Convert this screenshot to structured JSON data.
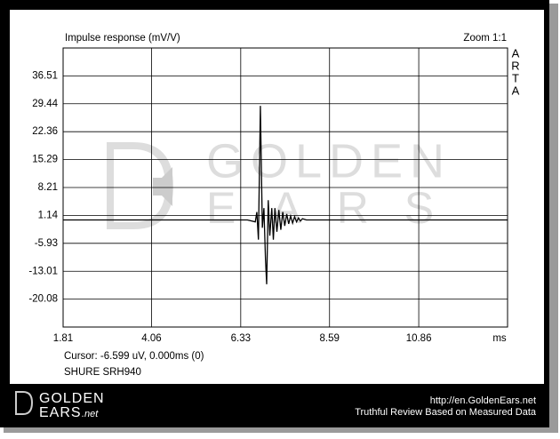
{
  "chart_data": {
    "type": "line",
    "title": "Impulse response (mV/V)",
    "zoom": "Zoom 1:1",
    "side_label": [
      "A",
      "R",
      "T",
      "A"
    ],
    "x_label": "ms",
    "cursor": "Cursor: -6.599 uV, 0.000ms (0)",
    "device": "SHURE SRH940",
    "x": [
      1.81,
      6.5,
      6.7,
      6.74,
      6.78,
      6.83,
      6.88,
      6.92,
      6.96,
      6.99,
      7.03,
      7.07,
      7.12,
      7.16,
      7.2,
      7.25,
      7.3,
      7.35,
      7.4,
      7.45,
      7.5,
      7.55,
      7.6,
      7.65,
      7.7,
      7.75,
      7.8,
      7.85,
      7.9,
      8.0,
      13.12
    ],
    "series": [
      {
        "name": "Impulse response",
        "color": "#000000",
        "values": [
          0,
          0,
          -0.5,
          2,
          -5,
          28.9,
          -2,
          3,
          -10,
          -16.3,
          5,
          -4,
          3,
          -5,
          3,
          -3,
          2.5,
          -2.5,
          2,
          -1.5,
          1.5,
          -1,
          1,
          -0.8,
          0.8,
          -0.5,
          0.5,
          -0.3,
          0.3,
          0,
          0
        ]
      }
    ],
    "xlim": [
      1.81,
      13.12
    ],
    "xticks": [
      1.81,
      4.06,
      6.33,
      8.59,
      10.86
    ],
    "ylim": [
      -27.15,
      43.58
    ],
    "yticks": [
      36.51,
      29.44,
      22.36,
      15.29,
      8.21,
      1.14,
      -5.93,
      -13.01,
      -20.08
    ],
    "grid": true
  },
  "watermark": {
    "line1": "GOLDEN",
    "line2": "EARS"
  },
  "footer": {
    "logo1": "GOLDEN",
    "logo2": "EARS",
    "logo3": ".net",
    "url": "http://en.GoldenEars.net",
    "tagline": "Truthful Review Based on Measured Data"
  }
}
